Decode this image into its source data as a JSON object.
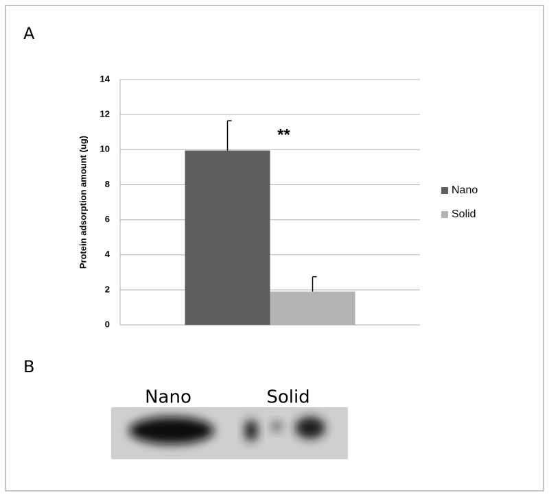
{
  "figure": {
    "panels": [
      "A",
      "B"
    ],
    "blot_labels": [
      "Nano",
      "Solid"
    ]
  },
  "chart_data": {
    "type": "bar",
    "y_label": "Protein adsorption amount (ug)",
    "annotation": "**",
    "categories": [
      null
    ],
    "series": [
      {
        "name": "Nano",
        "color": "#5f5f5f",
        "values": [
          9.95
        ],
        "errors": [
          1.7
        ]
      },
      {
        "name": "Solid",
        "color": "#b3b3b3",
        "values": [
          1.9
        ],
        "errors": [
          0.85
        ]
      }
    ],
    "ylim": [
      0,
      14
    ],
    "yticks": [
      0,
      2,
      4,
      6,
      8,
      10,
      12,
      14
    ],
    "grid": true,
    "legend": "right"
  }
}
